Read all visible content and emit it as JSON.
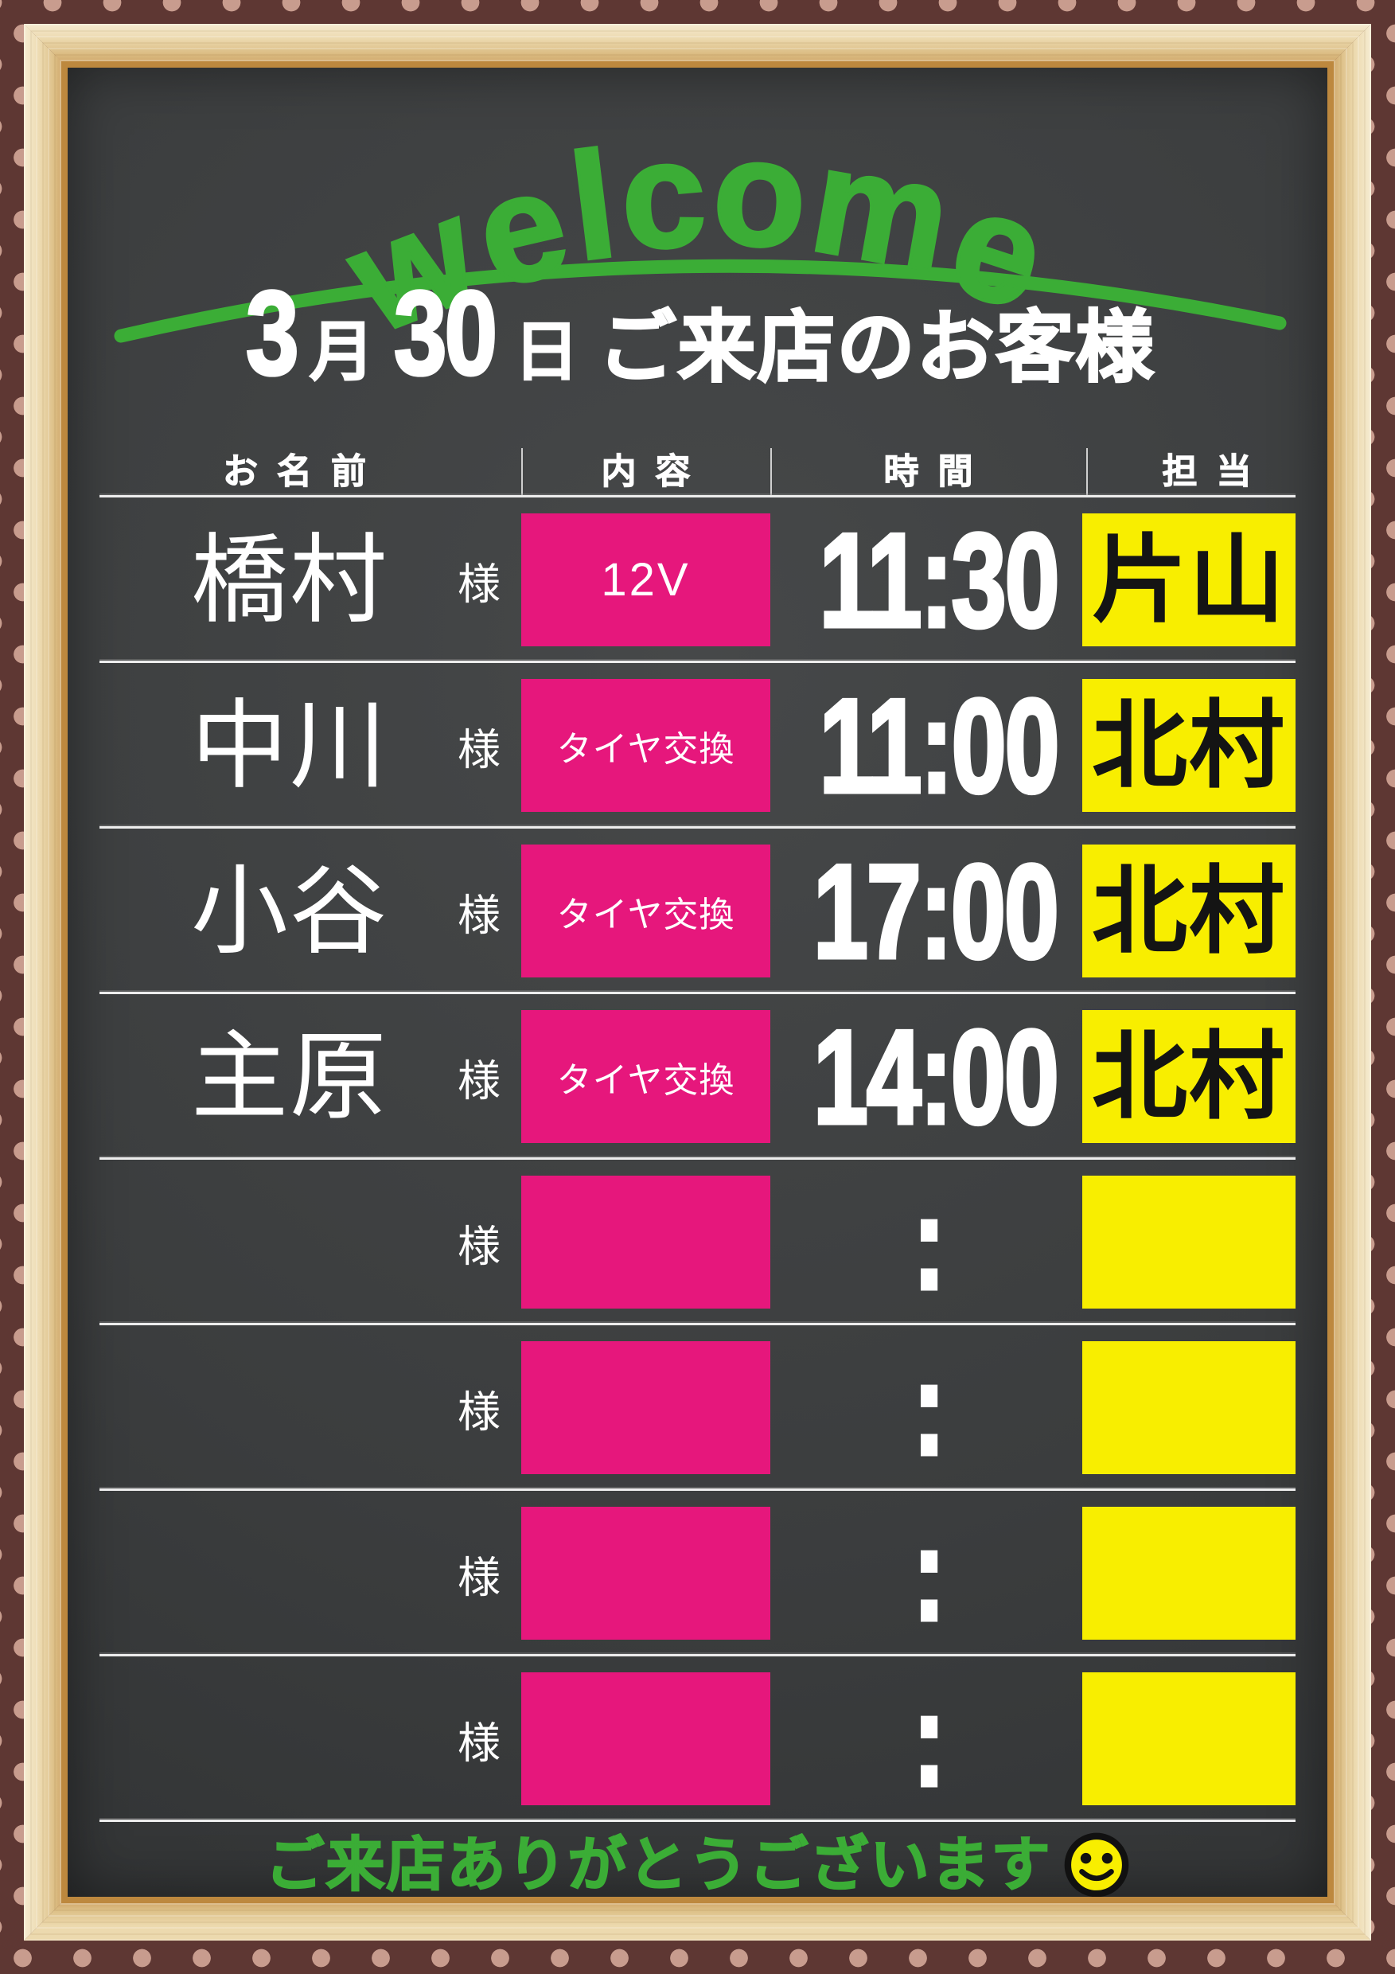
{
  "header": {
    "welcome_word": "welcome",
    "date": {
      "month": "3",
      "month_unit": "月",
      "day": "30",
      "day_unit": "日",
      "suffix": "ご来店のお客様"
    }
  },
  "table": {
    "column_headers": [
      "お名前",
      "内容",
      "時間",
      "担当"
    ],
    "honorific": "様",
    "rows": [
      {
        "name": "橋村",
        "content": "12V",
        "time": "11:30",
        "staff": "片山"
      },
      {
        "name": "中川",
        "content": "タイヤ交換",
        "time": "11:00",
        "staff": "北村"
      },
      {
        "name": "小谷",
        "content": "タイヤ交換",
        "time": "17:00",
        "staff": "北村"
      },
      {
        "name": "主原",
        "content": "タイヤ交換",
        "time": "14:00",
        "staff": "北村"
      },
      {
        "name": "",
        "content": "",
        "time": ":",
        "staff": ""
      },
      {
        "name": "",
        "content": "",
        "time": ":",
        "staff": ""
      },
      {
        "name": "",
        "content": "",
        "time": ":",
        "staff": ""
      },
      {
        "name": "",
        "content": "",
        "time": ":",
        "staff": ""
      }
    ]
  },
  "footer": {
    "message": "ご来店ありがとうございます",
    "icon": "smiley-face-icon"
  },
  "colors": {
    "green": "#3bad36",
    "pink": "#e6177c",
    "yellow": "#f8ee00",
    "board": "#3b3d3e",
    "frame_maroon": "#5e3733",
    "polka_dot": "#c89c8e",
    "wood_light": "#f6ecd2",
    "wood_dark": "#d2ab6e",
    "lip": "#bd883e",
    "text_white": "#ffffff",
    "text_black": "#141414"
  }
}
